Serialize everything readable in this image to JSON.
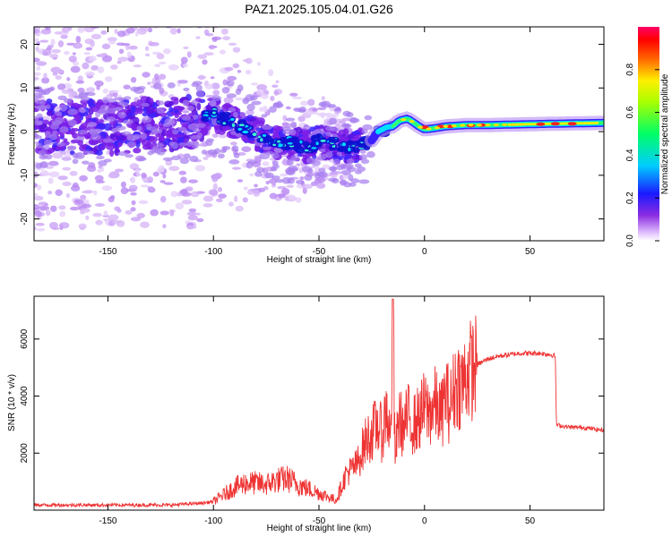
{
  "title": "PAZ1.2025.105.04.01.G26",
  "chart_data": [
    {
      "type": "heatmap",
      "xlabel": "Height of straight line (km)",
      "ylabel": "Frequency (Hz)",
      "xlim": [
        -185,
        85
      ],
      "ylim": [
        -25,
        24
      ],
      "xticks": [
        -150,
        -100,
        -50,
        0,
        50
      ],
      "yticks": [
        -20,
        -10,
        0,
        10,
        20
      ],
      "colorbar": {
        "label": "Normalized spectral amplitude",
        "range": [
          0.0,
          1.0
        ],
        "ticks": [
          0.0,
          0.2,
          0.4,
          0.6,
          0.8
        ],
        "colormap": "rainbow (white-violet-blue-cyan-green-yellow-red-magenta)"
      },
      "ridge": {
        "description": "frequency of maximum spectral amplitude vs height",
        "x": [
          -185,
          -170,
          -150,
          -130,
          -110,
          -100,
          -95,
          -90,
          -85,
          -80,
          -75,
          -70,
          -65,
          -60,
          -55,
          -50,
          -45,
          -40,
          -35,
          -30,
          -25,
          -22,
          -18,
          -15,
          -12,
          -8,
          -5,
          -2,
          0,
          5,
          10,
          20,
          30,
          40,
          60,
          85
        ],
        "y": [
          1,
          1,
          1,
          1.5,
          2,
          4,
          3,
          2,
          0.5,
          -0.5,
          -1.5,
          -2.5,
          -2.5,
          -3,
          -3.5,
          -2,
          -2.5,
          -3.5,
          -3.5,
          -3.2,
          -2,
          0,
          1,
          1.2,
          2.5,
          3,
          2,
          1,
          0.5,
          0.8,
          1.2,
          1.5,
          1.5,
          1.6,
          1.8,
          2
        ]
      }
    },
    {
      "type": "line",
      "xlabel": "Height of straight line (km)",
      "ylabel": "SNR (10 * v/v)",
      "xlim": [
        -185,
        85
      ],
      "ylim": [
        0,
        7500
      ],
      "xticks": [
        -150,
        -100,
        -50,
        0,
        50
      ],
      "yticks": [
        2000,
        4000,
        6000
      ],
      "series": [
        {
          "color": "#ee3333",
          "x": [
            -185,
            -150,
            -120,
            -105,
            -100,
            -95,
            -90,
            -85,
            -80,
            -75,
            -70,
            -65,
            -60,
            -55,
            -50,
            -45,
            -42,
            -40,
            -37,
            -35,
            -32,
            -30,
            -28,
            -25,
            -22,
            -20,
            -18,
            -16,
            -15,
            -14,
            -12,
            -10,
            -8,
            -5,
            -2,
            0,
            2,
            5,
            8,
            10,
            12,
            15,
            18,
            20,
            25,
            30,
            35,
            40,
            45,
            50,
            55,
            60,
            62,
            62.5,
            65,
            70,
            75,
            80,
            85
          ],
          "y": [
            180,
            180,
            180,
            250,
            300,
            550,
            800,
            950,
            950,
            900,
            1050,
            1100,
            900,
            750,
            600,
            450,
            350,
            700,
            1300,
            1400,
            1600,
            2000,
            2400,
            2700,
            3000,
            2600,
            3600,
            2400,
            7500,
            1800,
            3300,
            2800,
            3300,
            3000,
            3300,
            3600,
            3400,
            3700,
            3300,
            4100,
            3600,
            4500,
            4400,
            4800,
            5100,
            5300,
            5400,
            5450,
            5500,
            5500,
            5500,
            5450,
            5400,
            3000,
            2950,
            2900,
            2900,
            2850,
            2800
          ]
        }
      ]
    }
  ]
}
